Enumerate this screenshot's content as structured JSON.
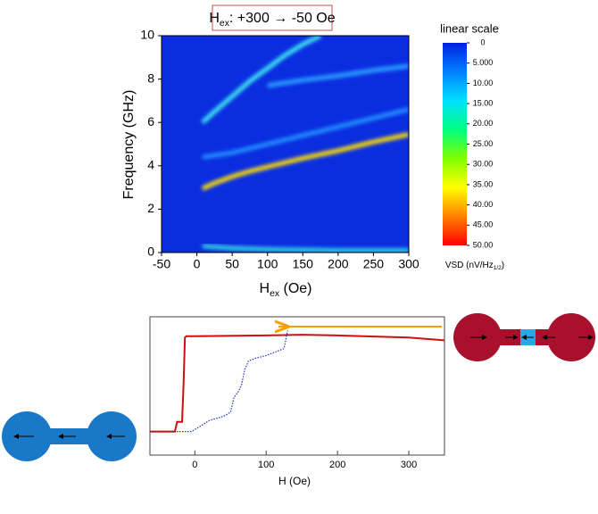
{
  "chart_data": [
    {
      "type": "heatmap",
      "title": [
        "H",
        "ex",
        ": +300 → -50 Oe"
      ],
      "xlabel": [
        "H",
        "ex",
        " (Oe)"
      ],
      "ylabel": "Frequency (GHz)",
      "xlim": [
        -50,
        300
      ],
      "xticks": [
        -50,
        0,
        50,
        100,
        150,
        200,
        250,
        300
      ],
      "ylim": [
        0,
        10
      ],
      "yticks": [
        0,
        2,
        4,
        6,
        8,
        10
      ],
      "background": "#0a2de0",
      "series": [
        {
          "color": "#ffe000",
          "x": [
            8,
            25,
            50,
            75,
            100,
            150,
            200,
            250,
            300
          ],
          "values": [
            2.95,
            3.2,
            3.5,
            3.75,
            3.95,
            4.35,
            4.7,
            5.1,
            5.45
          ]
        },
        {
          "color": "#40e8f0",
          "x": [
            8,
            25,
            50,
            75,
            100,
            125,
            150,
            175
          ],
          "values": [
            6.0,
            6.5,
            7.2,
            7.9,
            8.5,
            9.1,
            9.6,
            10
          ]
        },
        {
          "color": "#2aa0ff",
          "x": [
            100,
            150,
            200,
            250,
            300
          ],
          "values": [
            7.7,
            7.95,
            8.15,
            8.4,
            8.6
          ]
        },
        {
          "color": "#2090ff",
          "x": [
            8,
            50,
            100,
            150,
            200,
            250,
            300
          ],
          "values": [
            4.4,
            4.6,
            5.0,
            5.4,
            5.8,
            6.2,
            6.6
          ]
        },
        {
          "color": "#30d0e0",
          "x": [
            8,
            50,
            100,
            200,
            300
          ],
          "values": [
            0.3,
            0.2,
            0.15,
            0.1,
            0.1
          ]
        }
      ],
      "colorbar": {
        "label": "linear scale",
        "unit": [
          "VSD  (nV/Hz",
          "1/2",
          ")"
        ],
        "colors": [
          "#ff0000",
          "#ff8000",
          "#ffff00",
          "#80ff00",
          "#00ff80",
          "#00e0ff",
          "#0080ff",
          "#0020e0"
        ],
        "lim": [
          0,
          50
        ],
        "ticks": [
          0,
          {
            "value": 5,
            "label": "5.000"
          },
          {
            "value": 10,
            "label": "10.00"
          },
          {
            "value": 15,
            "label": "15.00"
          },
          {
            "value": 20,
            "label": "20.00"
          },
          {
            "value": 25,
            "label": "25.00"
          },
          {
            "value": 30,
            "label": "30.00"
          },
          {
            "value": 35,
            "label": "35.00"
          },
          {
            "value": 40,
            "label": "40.00"
          },
          {
            "value": 45,
            "label": "45.00"
          },
          {
            "value": 50,
            "label": "50.00"
          }
        ]
      }
    },
    {
      "type": "line",
      "xlabel": "H (Oe)",
      "xlim": [
        -63,
        350
      ],
      "xticks": [
        0,
        100,
        200,
        300
      ],
      "ylim": [
        0,
        1
      ],
      "series": [
        {
          "color": "#cc1010",
          "style": "solid",
          "x": [
            -63,
            -28,
            -25,
            -18,
            -16,
            -14,
            -12,
            0,
            100,
            150,
            200,
            300,
            350
          ],
          "values": [
            0.17,
            0.17,
            0.24,
            0.24,
            0.5,
            0.85,
            0.86,
            0.86,
            0.865,
            0.87,
            0.865,
            0.85,
            0.83
          ]
        },
        {
          "color": "#2030c0",
          "style": "dotted",
          "x": [
            -63,
            -5,
            5,
            20,
            40,
            50,
            55,
            60,
            65,
            70,
            75,
            85,
            100,
            115,
            125,
            130
          ],
          "values": [
            0.17,
            0.17,
            0.2,
            0.25,
            0.28,
            0.31,
            0.42,
            0.45,
            0.5,
            0.62,
            0.68,
            0.7,
            0.72,
            0.75,
            0.77,
            0.9
          ]
        }
      ]
    }
  ]
}
